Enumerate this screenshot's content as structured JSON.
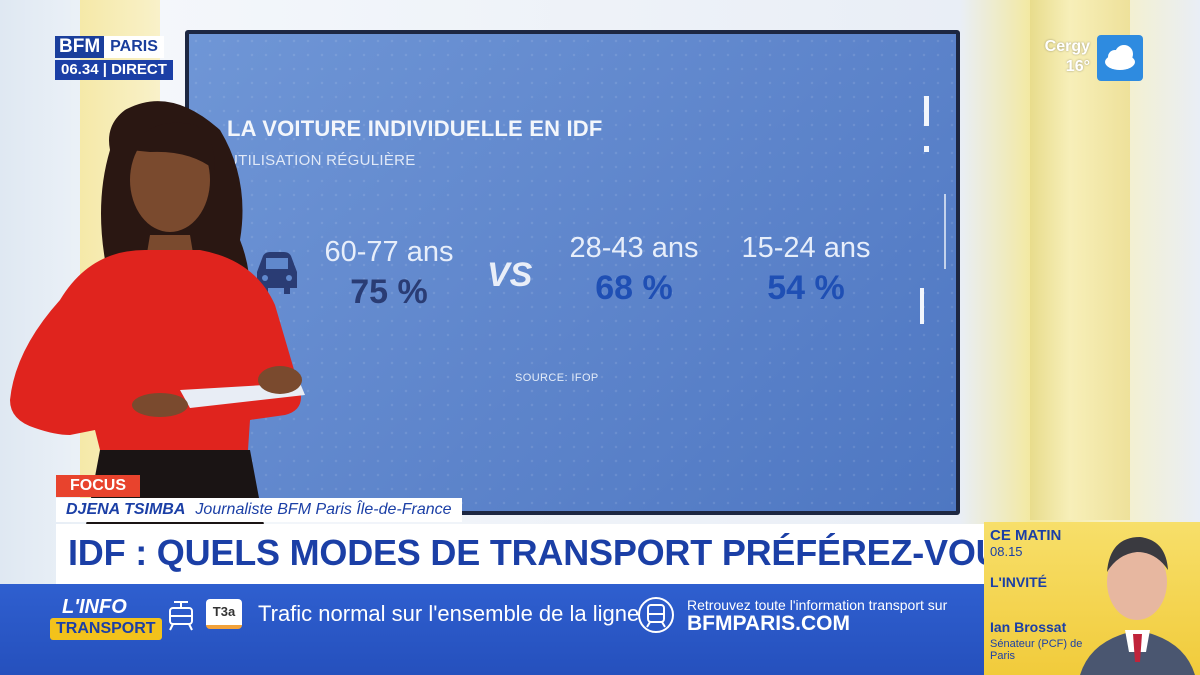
{
  "broadcast": {
    "channel_logo": "BFM",
    "channel_region": "PARIS",
    "time": "06.34",
    "live_label": "DIRECT"
  },
  "weather": {
    "city": "Cergy",
    "temperature": "16°",
    "icon": "cloud-icon"
  },
  "screen": {
    "title": "LA VOITURE INDIVIDUELLE EN IDF",
    "subtitle": "UTILISATION RÉGULIÈRE",
    "icon": "car-icon",
    "stats": [
      {
        "age": "60-77 ans",
        "percent": "75 %"
      },
      {
        "age": "28-43 ans",
        "percent": "68 %"
      },
      {
        "age": "15-24 ans",
        "percent": "54 %"
      }
    ],
    "vs_label": "VS",
    "source": "SOURCE: IFOP"
  },
  "lower_third": {
    "tag": "FOCUS",
    "presenter_name": "DJENA TSIMBA",
    "presenter_role": "Journaliste BFM Paris Île-de-France",
    "headline": "IDF : QUELS MODES DE TRANSPORT PRÉFÉREZ-VOUS ?"
  },
  "ticker": {
    "logo_top": "L'INFO",
    "logo_bottom": "TRANSPORT",
    "line_badge": "T3a",
    "message": "Trafic normal sur l'ensemble de la ligne",
    "promo_line1": "Retrouvez toute l'information transport sur",
    "promo_line2": "BFMPARIS.COM"
  },
  "next_show": {
    "title": "CE MATIN",
    "time": "08.15",
    "segment": "L'INVITÉ",
    "guest_name": "Ian Brossat",
    "guest_role": "Sénateur (PCF) de Paris"
  },
  "colors": {
    "brand_blue": "#1b3fa6",
    "focus_red": "#e8432d",
    "screen_blue": "#5f86cc",
    "panel_yellow": "#f3d34a"
  }
}
